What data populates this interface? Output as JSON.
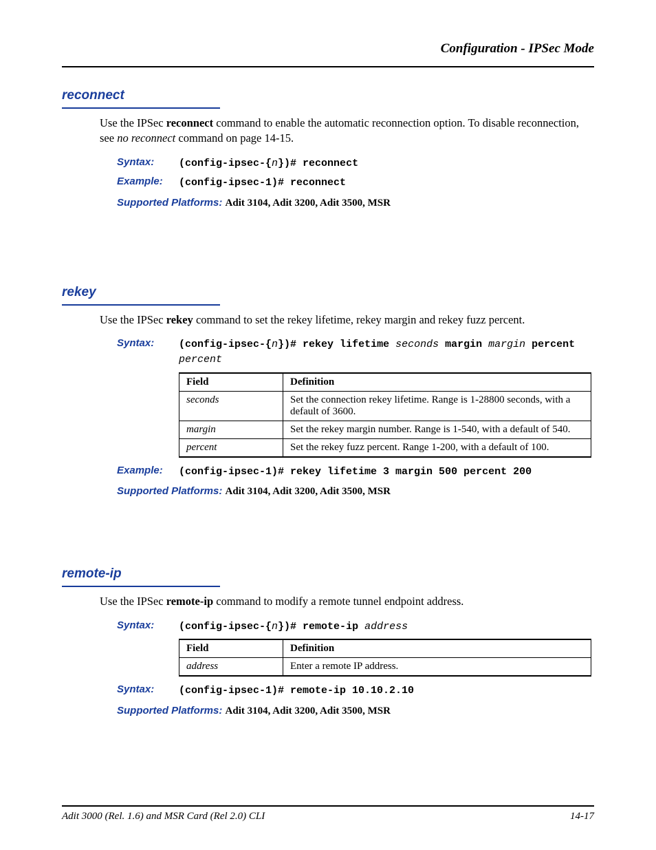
{
  "colors": {
    "accent": "#1a3e9c",
    "text": "#000000",
    "background": "#ffffff",
    "rule": "#000000"
  },
  "typography": {
    "body_family": "Times New Roman",
    "heading_family": "Arial",
    "mono_family": "Courier New",
    "body_size_pt": 12,
    "heading_size_pt": 14
  },
  "header": {
    "running_title": "Configuration - IPSec Mode"
  },
  "sections": {
    "reconnect": {
      "heading": "reconnect",
      "para_pre": "Use the IPSec ",
      "para_bold": "reconnect",
      "para_mid": " command to enable the automatic reconnection option. To disable reconnection, see ",
      "para_ital": "no reconnect",
      "para_post": " command on page 14-15.",
      "syntax_label": "Syntax:",
      "syntax_pre": "(config-ipsec-{",
      "syntax_n": "n",
      "syntax_post": "})# reconnect",
      "example_label": "Example:",
      "example_text": "(config-ipsec-1)# reconnect",
      "platforms_label": "Supported Platforms:  ",
      "platforms_text": "Adit 3104, Adit 3200, Adit 3500, MSR"
    },
    "rekey": {
      "heading": "rekey",
      "para_pre": "Use the IPSec ",
      "para_bold": "rekey",
      "para_post": " command to set the rekey lifetime, rekey margin and rekey fuzz percent.",
      "syntax_label": "Syntax:",
      "syntax_p1": "(config-ipsec-{",
      "syntax_n": "n",
      "syntax_p2": "})# rekey lifetime ",
      "syntax_seconds": "seconds",
      "syntax_p3": " margin ",
      "syntax_margin": "margin",
      "syntax_p4": " percent ",
      "syntax_percent": "percent",
      "table": {
        "col_field": "Field",
        "col_def": "Definition",
        "rows": [
          {
            "field": "seconds",
            "def": "Set the connection rekey lifetime. Range is 1-28800 seconds, with a default of 3600."
          },
          {
            "field": "margin",
            "def": "Set the rekey margin number. Range is 1-540, with a default of 540."
          },
          {
            "field": "percent",
            "def": "Set the rekey fuzz percent. Range 1-200, with a default of 100."
          }
        ]
      },
      "example_label": "Example:",
      "example_text": "(config-ipsec-1)# rekey lifetime 3 margin 500 percent 200",
      "platforms_label": "Supported Platforms:  ",
      "platforms_text": "Adit 3104, Adit 3200, Adit 3500, MSR"
    },
    "remoteip": {
      "heading": "remote-ip",
      "para_pre": "Use the IPSec ",
      "para_bold": "remote-ip",
      "para_post": " command to modify a remote tunnel endpoint address.",
      "syntax_label": "Syntax:",
      "syntax_p1": "(config-ipsec-{",
      "syntax_n": "n",
      "syntax_p2": "})# remote-ip ",
      "syntax_addr": "address",
      "table": {
        "col_field": "Field",
        "col_def": "Definition",
        "rows": [
          {
            "field": "address",
            "def": "Enter a remote IP address."
          }
        ]
      },
      "example_label": "Syntax:",
      "example_text": "(config-ipsec-1)# remote-ip 10.10.2.10",
      "platforms_label": "Supported Platforms:  ",
      "platforms_text": "Adit 3104, Adit 3200, Adit 3500, MSR"
    }
  },
  "footer": {
    "left": "Adit 3000 (Rel. 1.6) and MSR Card (Rel 2.0) CLI",
    "right": "14-17"
  }
}
